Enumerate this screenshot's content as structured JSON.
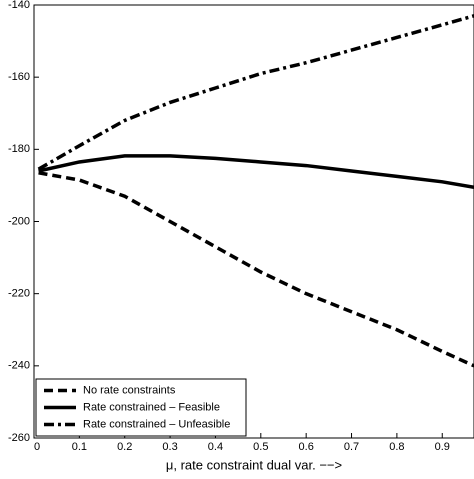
{
  "chart_data": {
    "type": "line",
    "x_label": "μ,  rate constraint dual var. −−>",
    "x": [
      0.01,
      0.1,
      0.2,
      0.3,
      0.4,
      0.5,
      0.6,
      0.7,
      0.8,
      0.9,
      0.97
    ],
    "series": [
      {
        "name": "No rate constraints",
        "color": "#000000",
        "style": "dashed",
        "values": [
          -186.5,
          -188.5,
          -193,
          -200,
          -207,
          -214,
          -220,
          -225,
          -230,
          -236,
          -240
        ]
      },
      {
        "name": "Rate constrained – Feasible",
        "color": "#000000",
        "style": "solid",
        "values": [
          -186,
          -183.5,
          -181.8,
          -181.8,
          -182.5,
          -183.5,
          -184.5,
          -186,
          -187.5,
          -189,
          -190.5
        ]
      },
      {
        "name": "Rate constrained – Unfeasible",
        "color": "#000000",
        "style": "dashdot",
        "values": [
          -185.5,
          -179,
          -172,
          -167,
          -163,
          -159,
          -156,
          -152.5,
          -149,
          -145.5,
          -143
        ]
      }
    ],
    "xlim": [
      0,
      0.97
    ],
    "xticks": [
      0,
      0.1,
      0.2,
      0.3,
      0.4,
      0.5,
      0.6,
      0.7,
      0.8,
      0.9
    ],
    "ylim": [
      -260,
      -140
    ],
    "yticks": [
      -260,
      -240,
      -220,
      -200,
      -180,
      -160,
      -140
    ],
    "legend": "lower-left"
  }
}
